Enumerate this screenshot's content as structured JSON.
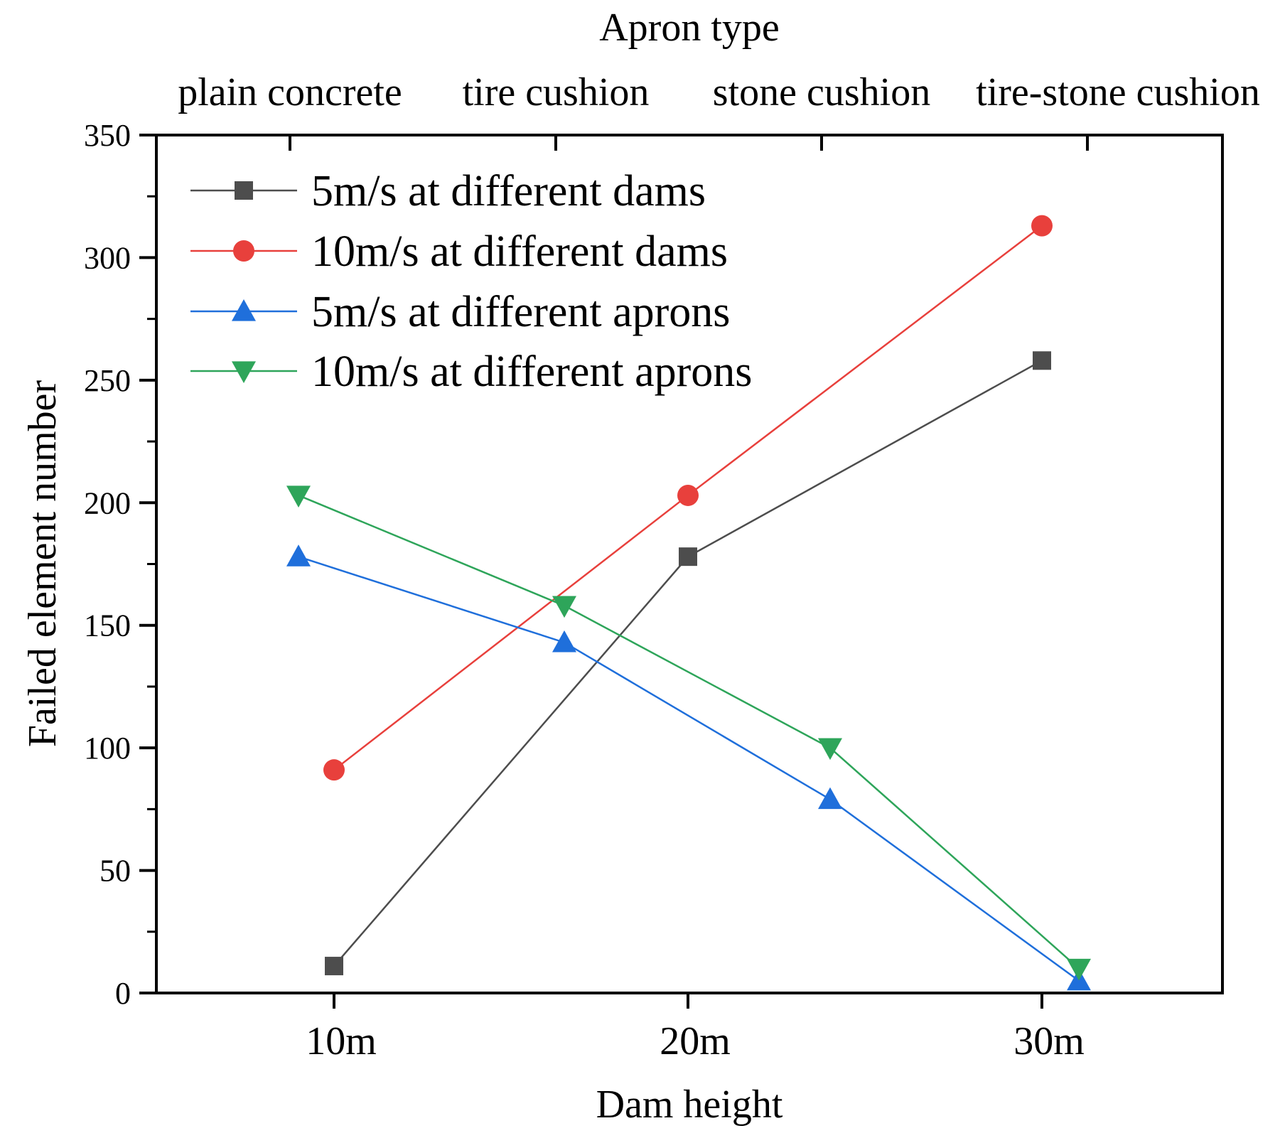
{
  "chart_data": {
    "type": "line",
    "title": "",
    "xlabel": "Dam height",
    "ylabel": "Failed element number",
    "top_axis_title": "Apron type",
    "ylim": [
      0,
      350
    ],
    "yticks": [
      0,
      50,
      100,
      150,
      200,
      250,
      300,
      350
    ],
    "x_bottom_categories": [
      "10m",
      "20m",
      "30m"
    ],
    "x_top_categories": [
      "plain concrete",
      "tire cushion",
      "stone cushion",
      "tire-stone cushion"
    ],
    "legend_position": "top-left",
    "series": [
      {
        "name": "5m/s at different dams",
        "axis": "bottom",
        "marker": "square",
        "color": "#4d4d4d",
        "categories": [
          "10m",
          "20m",
          "30m"
        ],
        "values": [
          11,
          178,
          258
        ]
      },
      {
        "name": "10m/s at different dams",
        "axis": "bottom",
        "marker": "circle",
        "color": "#e8403c",
        "categories": [
          "10m",
          "20m",
          "30m"
        ],
        "values": [
          91,
          203,
          313
        ]
      },
      {
        "name": "5m/s at different aprons",
        "axis": "top",
        "marker": "triangle-up",
        "color": "#1f6fdb",
        "categories": [
          "plain concrete",
          "tire cushion",
          "stone cushion",
          "tire-stone cushion"
        ],
        "values": [
          178,
          143,
          79,
          5
        ]
      },
      {
        "name": "10m/s at different aprons",
        "axis": "top",
        "marker": "triangle-down",
        "color": "#2ea55a",
        "categories": [
          "plain concrete",
          "tire cushion",
          "stone cushion",
          "tire-stone cushion"
        ],
        "values": [
          203,
          158,
          100,
          10
        ]
      }
    ]
  }
}
